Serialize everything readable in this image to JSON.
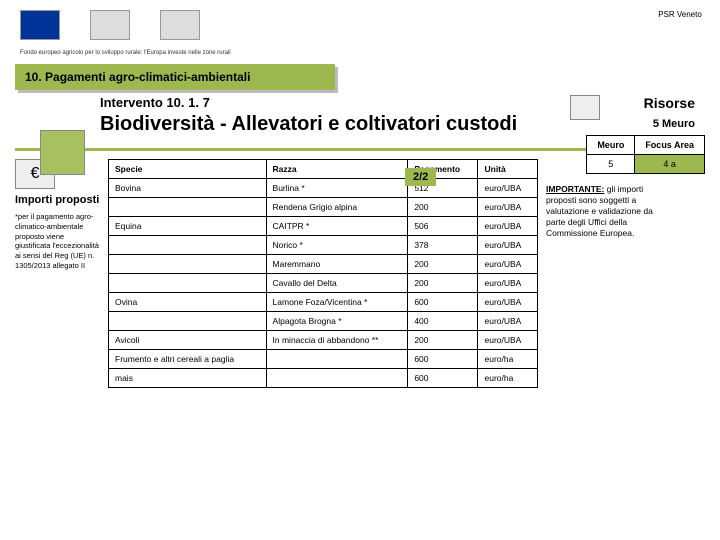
{
  "tagline": "Fondo europeo agricolo per lo sviluppo rurale: l'Europa investe nelle zone rurali",
  "psr_label": "PSR Veneto",
  "section_bar": "10. Pagamenti agro-climatici-ambientali",
  "risorse": "Risorse",
  "meuro": "5 Meuro",
  "intervento": "Intervento 10. 1. 7",
  "main_title": "Biodiversità - Allevatori e coltivatori custodi",
  "page": "2/2",
  "mini": {
    "h1": "Meuro",
    "h2": "Focus Area",
    "v1": "5",
    "v2": "4 a"
  },
  "left": {
    "title": "Importi proposti",
    "footnote": "*per il pagamento agro-climatico-ambientale proposto viene giustificata l'eccezionalità ai sensi del Reg (UE) n. 1305/2013 allegato II"
  },
  "table": {
    "headers": [
      "Specie",
      "Razza",
      "Pagamento",
      "Unità"
    ],
    "rows": [
      [
        "Bovina",
        "Burlina *",
        "512",
        "euro/UBA"
      ],
      [
        "",
        "Rendena Grigio alpina",
        "200",
        "euro/UBA"
      ],
      [
        "Equina",
        "CAITPR *",
        "506",
        "euro/UBA"
      ],
      [
        "",
        "Norico *",
        "378",
        "euro/UBA"
      ],
      [
        "",
        "Maremmano",
        "200",
        "euro/UBA"
      ],
      [
        "",
        "Cavallo del Delta",
        "200",
        "euro/UBA"
      ],
      [
        "Ovina",
        "Lamone Foza/Vicentina *",
        "600",
        "euro/UBA"
      ],
      [
        "",
        "Alpagota Brogna *",
        "400",
        "euro/UBA"
      ],
      [
        "Avicoli",
        "In minaccia di abbandono **",
        "200",
        "euro/UBA"
      ],
      [
        "Frumento e altri cereali a paglia",
        "",
        "600",
        "euro/ha"
      ],
      [
        "mais",
        "",
        "600",
        "euro/ha"
      ]
    ]
  },
  "note": {
    "label": "IMPORTANTE:",
    "text": " gli importi proposti sono soggetti a valutazione e validazione da parte degli Uffici della Commissione Europea."
  }
}
